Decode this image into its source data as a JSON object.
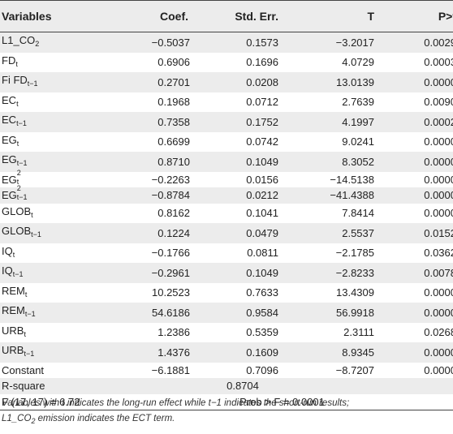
{
  "table": {
    "headers": [
      "Variables",
      "Coef.",
      "Std. Err.",
      "T",
      "P>t"
    ],
    "rows": [
      {
        "base": "L1_CO",
        "sub": "2",
        "coef": "−0.5037",
        "se": "0.1573",
        "t": "−3.2017",
        "p": "0.0029"
      },
      {
        "base": "FD",
        "sub": "t",
        "coef": "0.6906",
        "se": "0.1696",
        "t": "4.0729",
        "p": "0.0003"
      },
      {
        "base": "Fi FD",
        "sub": "t−1",
        "coef": "0.2701",
        "se": "0.0208",
        "t": "13.0139",
        "p": "0.0000"
      },
      {
        "base": "EC",
        "sub": "t",
        "coef": "0.1968",
        "se": "0.0712",
        "t": "2.7639",
        "p": "0.0090"
      },
      {
        "base": "EC",
        "sub": "t−1",
        "coef": "0.7358",
        "se": "0.1752",
        "t": "4.1997",
        "p": "0.0002"
      },
      {
        "base": "EG",
        "sub": "t",
        "coef": "0.6699",
        "se": "0.0742",
        "t": "9.0241",
        "p": "0.0000"
      },
      {
        "base": "EG",
        "sub": "t−1",
        "coef": "0.8710",
        "se": "0.1049",
        "t": "8.3052",
        "p": "0.0000"
      },
      {
        "base": "EG",
        "sup": "2",
        "sub": "t",
        "coef": "−0.2263",
        "se": "0.0156",
        "t": "−14.5138",
        "p": "0.0000"
      },
      {
        "base": "EG",
        "sup": "2",
        "sub": "t−1",
        "coef": "−0.8784",
        "se": "0.0212",
        "t": "−41.4388",
        "p": "0.0000"
      },
      {
        "base": "GLOB",
        "sub": "t",
        "coef": "0.8162",
        "se": "0.1041",
        "t": "7.8414",
        "p": "0.0000"
      },
      {
        "base": "GLOB",
        "sub": "t−1",
        "coef": "0.1224",
        "se": "0.0479",
        "t": "2.5537",
        "p": "0.0152"
      },
      {
        "base": "IQ",
        "sub": "t",
        "coef": "−0.1766",
        "se": "0.0811",
        "t": "−2.1785",
        "p": "0.0362"
      },
      {
        "base": "IQ",
        "sub": "t−1",
        "coef": "−0.2961",
        "se": "0.1049",
        "t": "−2.8233",
        "p": "0.0078"
      },
      {
        "base": "REM",
        "sub": "t",
        "coef": "10.2523",
        "se": "0.7633",
        "t": "13.4309",
        "p": "0.0000"
      },
      {
        "base": "REM",
        "sub": "t−1",
        "coef": "54.6186",
        "se": "0.9584",
        "t": "56.9918",
        "p": "0.0000"
      },
      {
        "base": "URB",
        "sub": "t",
        "coef": "1.2386",
        "se": "0.5359",
        "t": "2.3111",
        "p": "0.0268"
      },
      {
        "base": "URB",
        "sub": "t−1",
        "coef": "1.4376",
        "se": "0.1609",
        "t": "8.9345",
        "p": "0.0000"
      },
      {
        "base": "Constant",
        "coef": "−6.1881",
        "se": "0.7096",
        "t": "−8.7207",
        "p": "0.0000"
      }
    ],
    "rsquare_label": "R-square",
    "rsquare_value": "0.8704",
    "f_label": "F (17, 17) = 6.72",
    "prob_label": "Prob > F = 0.0001"
  },
  "note": {
    "line1": "Variables with t indicates the long-run effect while t−1 indicates the short-run results;",
    "line2_a": "L1_CO",
    "line2_sub": "2",
    "line2_b": " emission indicates the ECT term."
  }
}
